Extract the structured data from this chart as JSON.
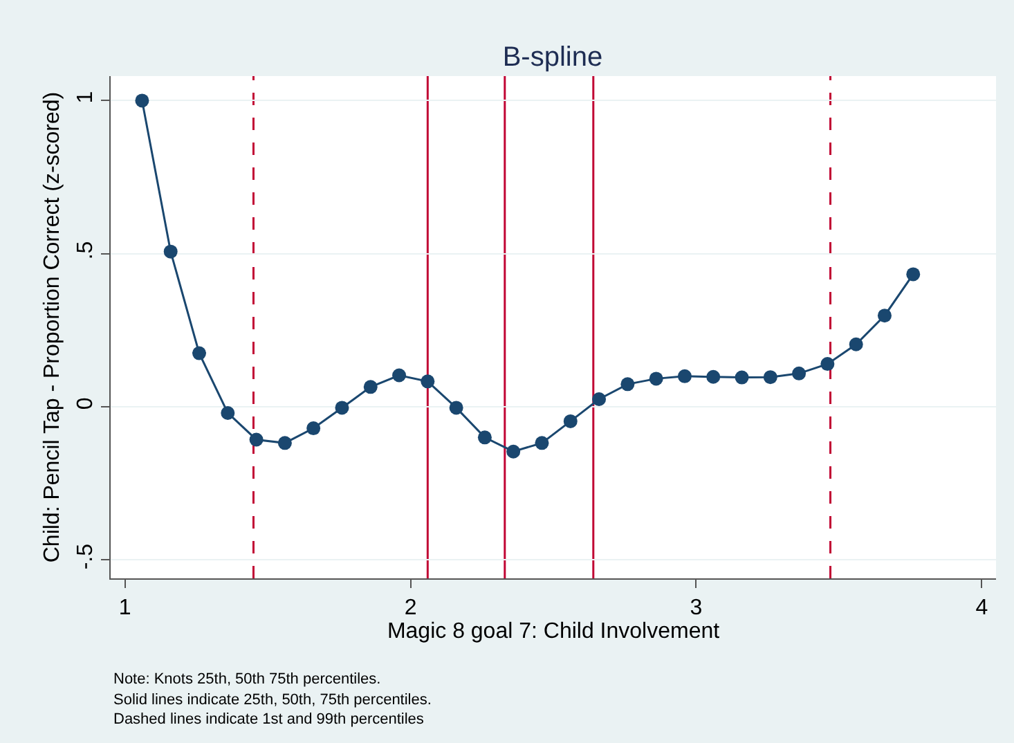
{
  "chart_data": {
    "type": "line",
    "title": "B-spline",
    "xlabel": "Magic 8 goal 7: Child Involvement",
    "ylabel": "Child: Pencil Tap - Proportion Correct (z-scored)",
    "x": [
      1.06,
      1.16,
      1.26,
      1.36,
      1.46,
      1.56,
      1.66,
      1.76,
      1.86,
      1.96,
      2.06,
      2.16,
      2.26,
      2.36,
      2.46,
      2.56,
      2.66,
      2.76,
      2.86,
      2.96,
      3.06,
      3.16,
      3.26,
      3.36,
      3.46,
      3.56,
      3.66,
      3.76
    ],
    "series": [
      {
        "color": "#1a476f",
        "values": [
          1.0,
          0.507,
          0.175,
          -0.02,
          -0.107,
          -0.118,
          -0.07,
          -0.003,
          0.065,
          0.103,
          0.083,
          -0.003,
          -0.1,
          -0.146,
          -0.118,
          -0.047,
          0.025,
          0.074,
          0.092,
          0.1,
          0.098,
          0.096,
          0.097,
          0.109,
          0.14,
          0.204,
          0.298,
          0.433
        ]
      }
    ],
    "marker": "circle",
    "line_style": "solid",
    "grid": "y",
    "xlim": [
      0.95,
      4.05
    ],
    "xticks": [
      1,
      2,
      3,
      4
    ],
    "ylim": [
      -0.56,
      1.08
    ],
    "yticks": [
      {
        "value": -0.5,
        "label": "-.5"
      },
      0,
      {
        "value": 0.5,
        "label": ".5"
      },
      1
    ],
    "ref_lines": [
      {
        "axis": "x",
        "value": 1.45,
        "color": "#c10534",
        "line_style": "dashed"
      },
      {
        "axis": "x",
        "value": 2.06,
        "color": "#c10534",
        "line_style": "solid"
      },
      {
        "axis": "x",
        "value": 2.33,
        "color": "#c10534",
        "line_style": "solid"
      },
      {
        "axis": "x",
        "value": 2.64,
        "color": "#c10534",
        "line_style": "solid"
      },
      {
        "axis": "x",
        "value": 3.47,
        "color": "#c10534",
        "line_style": "dashed"
      }
    ],
    "annotations": [
      "Note: Knots 25th, 50th 75th percentiles.",
      "Solid lines indicate 25th, 50th, 75th percentiles.",
      "Dashed lines indicate 1st and 99th percentiles"
    ]
  }
}
